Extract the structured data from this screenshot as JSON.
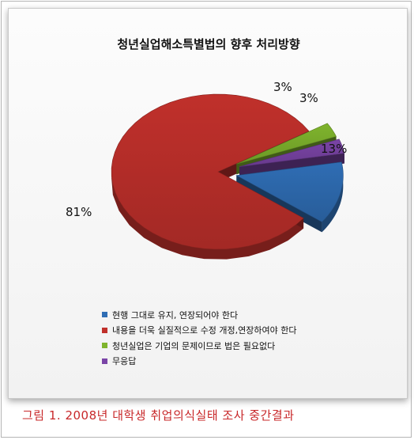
{
  "chart_data": {
    "type": "pie",
    "title": "청년실업해소특별법의 향후 처리방향",
    "series": [
      {
        "name": "현행 그대로 유지, 연장되어야 한다",
        "value": 13,
        "label": "13%",
        "color": "#2f6db4"
      },
      {
        "name": "내용을 더욱 실질적으로 수정 개정,연장하여야 한다",
        "value": 81,
        "label": "81%",
        "color": "#c0302b"
      },
      {
        "name": "청년실업은 기업의 문제이므로 법은 필요없다",
        "value": 3,
        "label": "3%",
        "color": "#7fb42d"
      },
      {
        "name": "무응답",
        "value": 3,
        "label": "3%",
        "color": "#7a44a6"
      }
    ],
    "exploded": true,
    "three_d": true,
    "legend_position": "bottom"
  },
  "caption": "그림 1.  2008년 대학생 취업의식실태 조사 중간결과"
}
